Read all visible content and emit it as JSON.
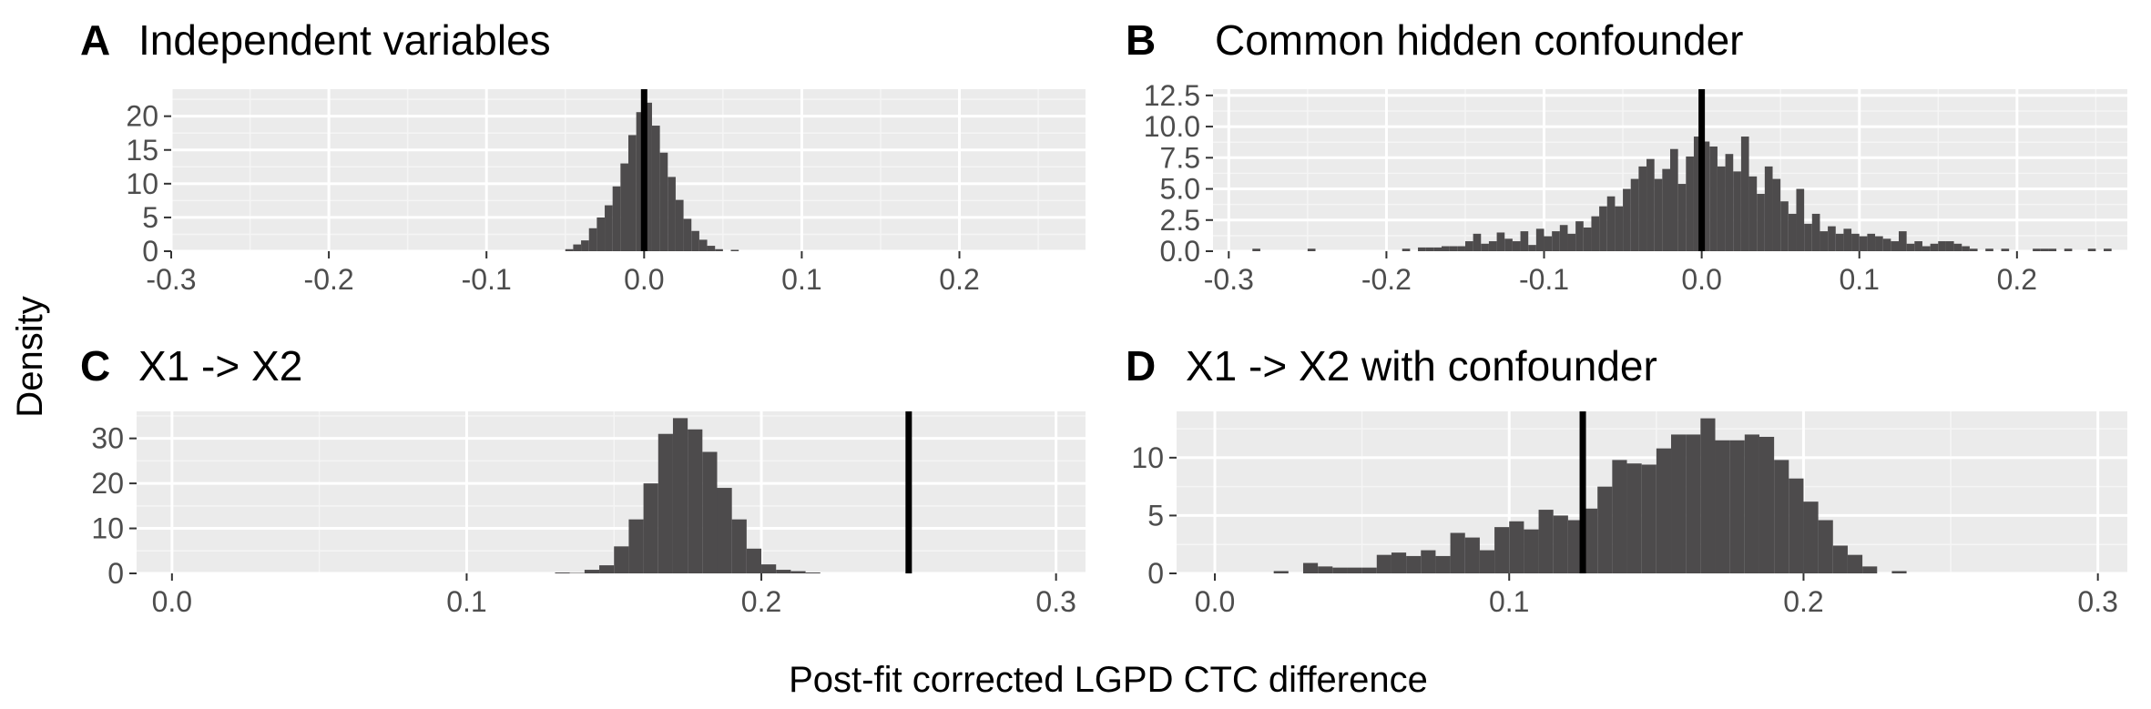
{
  "figure": {
    "ylabel": "Density",
    "xlabel": "Post-fit corrected LGPD CTC difference"
  },
  "chart_data": [
    {
      "panel": "A",
      "title": "Independent variables",
      "type": "bar",
      "xlim": [
        -0.3,
        0.28
      ],
      "ylim": [
        0,
        24
      ],
      "xticks": [
        -0.3,
        -0.2,
        -0.1,
        0.0,
        0.1,
        0.2
      ],
      "xtick_labels": [
        "-0.3",
        "-0.2",
        "-0.1",
        "0.0",
        "0.1",
        "0.2"
      ],
      "yticks": [
        0,
        5,
        10,
        15,
        20
      ],
      "ytick_labels": [
        "0",
        "5",
        "10",
        "15",
        "20"
      ],
      "bin_width": 0.005,
      "bins": [
        [
          -0.0475,
          0.3
        ],
        [
          -0.0425,
          1.0
        ],
        [
          -0.0375,
          1.6
        ],
        [
          -0.0325,
          3.4
        ],
        [
          -0.0275,
          5.0
        ],
        [
          -0.0225,
          6.8
        ],
        [
          -0.0175,
          9.6
        ],
        [
          -0.0125,
          13.0
        ],
        [
          -0.0075,
          17.2
        ],
        [
          -0.0025,
          20.6
        ],
        [
          0.0025,
          22.0
        ],
        [
          0.0075,
          18.6
        ],
        [
          0.0125,
          14.6
        ],
        [
          0.0175,
          11.0
        ],
        [
          0.0225,
          7.6
        ],
        [
          0.0275,
          4.8
        ],
        [
          0.0325,
          3.0
        ],
        [
          0.0375,
          1.7
        ],
        [
          0.0425,
          0.8
        ],
        [
          0.0475,
          0.3
        ],
        [
          0.0575,
          0.2
        ]
      ],
      "reference_line": 0.0,
      "grid": true
    },
    {
      "panel": "B",
      "title": "Common hidden confounder",
      "type": "bar",
      "xlim": [
        -0.31,
        0.27
      ],
      "ylim": [
        0,
        13
      ],
      "xticks": [
        -0.3,
        -0.2,
        -0.1,
        0.0,
        0.1,
        0.2
      ],
      "xtick_labels": [
        "-0.3",
        "-0.2",
        "-0.1",
        "0.0",
        "0.1",
        "0.2"
      ],
      "yticks": [
        0,
        2.5,
        5,
        7.5,
        10,
        12.5
      ],
      "ytick_labels": [
        "0.0",
        "2.5",
        "5.0",
        "7.5",
        "10.0",
        "12.5"
      ],
      "bin_width": 0.005,
      "bins": [
        [
          -0.2825,
          0.2
        ],
        [
          -0.2475,
          0.2
        ],
        [
          -0.1875,
          0.2
        ],
        [
          -0.1775,
          0.3
        ],
        [
          -0.1725,
          0.3
        ],
        [
          -0.1675,
          0.3
        ],
        [
          -0.1625,
          0.4
        ],
        [
          -0.1575,
          0.4
        ],
        [
          -0.1525,
          0.4
        ],
        [
          -0.1475,
          0.8
        ],
        [
          -0.1425,
          1.4
        ],
        [
          -0.1375,
          0.6
        ],
        [
          -0.1325,
          0.8
        ],
        [
          -0.1275,
          1.5
        ],
        [
          -0.1225,
          1.0
        ],
        [
          -0.1175,
          0.8
        ],
        [
          -0.1125,
          1.6
        ],
        [
          -0.1075,
          0.5
        ],
        [
          -0.1025,
          1.8
        ],
        [
          -0.0975,
          1.2
        ],
        [
          -0.0925,
          1.6
        ],
        [
          -0.0875,
          2.1
        ],
        [
          -0.0825,
          1.4
        ],
        [
          -0.0775,
          2.4
        ],
        [
          -0.0725,
          1.9
        ],
        [
          -0.0675,
          2.8
        ],
        [
          -0.0625,
          3.6
        ],
        [
          -0.0575,
          4.4
        ],
        [
          -0.0525,
          3.6
        ],
        [
          -0.0475,
          5.0
        ],
        [
          -0.0425,
          5.8
        ],
        [
          -0.0375,
          6.8
        ],
        [
          -0.0325,
          7.4
        ],
        [
          -0.0275,
          5.8
        ],
        [
          -0.0225,
          6.6
        ],
        [
          -0.0175,
          8.2
        ],
        [
          -0.0125,
          5.4
        ],
        [
          -0.0075,
          7.6
        ],
        [
          -0.0025,
          9.2
        ],
        [
          0.0025,
          8.8
        ],
        [
          0.0075,
          8.4
        ],
        [
          0.0125,
          6.8
        ],
        [
          0.0175,
          7.8
        ],
        [
          0.0225,
          6.4
        ],
        [
          0.0275,
          9.2
        ],
        [
          0.0325,
          6.0
        ],
        [
          0.0375,
          4.6
        ],
        [
          0.0425,
          6.8
        ],
        [
          0.0475,
          5.8
        ],
        [
          0.0525,
          4.0
        ],
        [
          0.0575,
          3.0
        ],
        [
          0.0625,
          5.0
        ],
        [
          0.0675,
          2.2
        ],
        [
          0.0725,
          3.0
        ],
        [
          0.0775,
          1.6
        ],
        [
          0.0825,
          2.0
        ],
        [
          0.0875,
          1.4
        ],
        [
          0.0925,
          1.8
        ],
        [
          0.0975,
          1.4
        ],
        [
          0.1025,
          1.2
        ],
        [
          0.1075,
          1.4
        ],
        [
          0.1125,
          1.2
        ],
        [
          0.1175,
          1.0
        ],
        [
          0.1225,
          0.8
        ],
        [
          0.1275,
          1.6
        ],
        [
          0.1325,
          0.6
        ],
        [
          0.1375,
          0.8
        ],
        [
          0.1425,
          0.4
        ],
        [
          0.1475,
          0.6
        ],
        [
          0.1525,
          0.8
        ],
        [
          0.1575,
          0.8
        ],
        [
          0.1625,
          0.6
        ],
        [
          0.1675,
          0.4
        ],
        [
          0.1725,
          0.2
        ],
        [
          0.1825,
          0.2
        ],
        [
          0.1925,
          0.2
        ],
        [
          0.2125,
          0.2
        ],
        [
          0.2175,
          0.2
        ],
        [
          0.2225,
          0.2
        ],
        [
          0.2325,
          0.2
        ],
        [
          0.2475,
          0.2
        ],
        [
          0.2575,
          0.2
        ]
      ],
      "reference_line": 0.0,
      "grid": true
    },
    {
      "panel": "C",
      "title": "X1 -> X2",
      "type": "bar",
      "xlim": [
        -0.012,
        0.31
      ],
      "ylim": [
        0,
        36
      ],
      "xticks": [
        0.0,
        0.1,
        0.2,
        0.3
      ],
      "xtick_labels": [
        "0.0",
        "0.1",
        "0.2",
        "0.3"
      ],
      "yticks": [
        0,
        10,
        20,
        30
      ],
      "ytick_labels": [
        "0",
        "10",
        "20",
        "30"
      ],
      "bin_width": 0.005,
      "bins": [
        [
          0.1325,
          0.2
        ],
        [
          0.1375,
          0.1
        ],
        [
          0.1425,
          0.8
        ],
        [
          0.1475,
          1.8
        ],
        [
          0.1525,
          6.0
        ],
        [
          0.1575,
          12.0
        ],
        [
          0.1625,
          20.0
        ],
        [
          0.1675,
          31.0
        ],
        [
          0.1725,
          34.5
        ],
        [
          0.1775,
          32.0
        ],
        [
          0.1825,
          27.0
        ],
        [
          0.1875,
          19.0
        ],
        [
          0.1925,
          12.0
        ],
        [
          0.1975,
          5.5
        ],
        [
          0.2025,
          2.0
        ],
        [
          0.2075,
          0.8
        ],
        [
          0.2125,
          0.5
        ],
        [
          0.2175,
          0.2
        ]
      ],
      "reference_line": 0.25,
      "grid": true
    },
    {
      "panel": "D",
      "title": "X1 -> X2 with confounder",
      "type": "bar",
      "xlim": [
        -0.013,
        0.31
      ],
      "ylim": [
        0,
        14
      ],
      "xticks": [
        0.0,
        0.1,
        0.2,
        0.3
      ],
      "xtick_labels": [
        "0.0",
        "0.1",
        "0.2",
        "0.3"
      ],
      "yticks": [
        0,
        5,
        10
      ],
      "ytick_labels": [
        "0",
        "5",
        "10"
      ],
      "bin_width": 0.005,
      "bins": [
        [
          0.0225,
          0.2
        ],
        [
          0.0325,
          0.9
        ],
        [
          0.0375,
          0.6
        ],
        [
          0.0425,
          0.5
        ],
        [
          0.0475,
          0.5
        ],
        [
          0.0525,
          0.5
        ],
        [
          0.0575,
          1.6
        ],
        [
          0.0625,
          1.8
        ],
        [
          0.0675,
          1.5
        ],
        [
          0.0725,
          2.0
        ],
        [
          0.0775,
          1.5
        ],
        [
          0.0825,
          3.5
        ],
        [
          0.0875,
          3.1
        ],
        [
          0.0925,
          2.0
        ],
        [
          0.0975,
          4.0
        ],
        [
          0.1025,
          4.5
        ],
        [
          0.1075,
          3.8
        ],
        [
          0.1125,
          5.5
        ],
        [
          0.1175,
          5.0
        ],
        [
          0.1225,
          4.6
        ],
        [
          0.1275,
          5.6
        ],
        [
          0.1325,
          7.5
        ],
        [
          0.1375,
          9.8
        ],
        [
          0.1425,
          9.5
        ],
        [
          0.1475,
          9.4
        ],
        [
          0.1525,
          10.8
        ],
        [
          0.1575,
          12.0
        ],
        [
          0.1625,
          12.0
        ],
        [
          0.1675,
          13.4
        ],
        [
          0.1725,
          11.5
        ],
        [
          0.1775,
          11.5
        ],
        [
          0.1825,
          12.0
        ],
        [
          0.1875,
          11.8
        ],
        [
          0.1925,
          9.8
        ],
        [
          0.1975,
          8.2
        ],
        [
          0.2025,
          6.2
        ],
        [
          0.2075,
          4.6
        ],
        [
          0.2125,
          2.4
        ],
        [
          0.2175,
          1.6
        ],
        [
          0.2225,
          0.6
        ],
        [
          0.2325,
          0.2
        ]
      ],
      "reference_line": 0.125,
      "grid": true
    }
  ],
  "colors": {
    "panel_background": "#ebebeb",
    "grid_major": "#ffffff",
    "grid_minor": "#f5f5f5",
    "bar_fill": "#4d4b4c",
    "reference_line": "#000000",
    "tick_color": "#333333",
    "tick_label": "#4d4d4d"
  }
}
